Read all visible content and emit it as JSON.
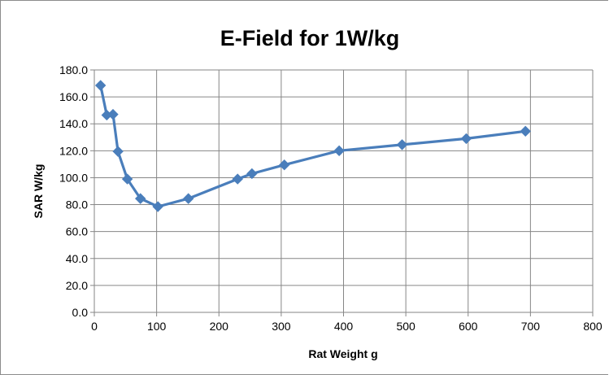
{
  "chart_data": {
    "type": "line",
    "title": "E-Field for 1W/kg",
    "xlabel": "Rat Weight g",
    "ylabel": "SAR W/kg",
    "xlim": [
      0,
      800
    ],
    "ylim": [
      0,
      180
    ],
    "x_ticks": [
      "0",
      "100",
      "200",
      "300",
      "400",
      "500",
      "600",
      "700",
      "800"
    ],
    "y_ticks": [
      "0.0",
      "20.0",
      "40.0",
      "60.0",
      "80.0",
      "100.0",
      "120.0",
      "140.0",
      "160.0",
      "180.0"
    ],
    "grid": true,
    "legend": "none",
    "colors": {
      "series": "#4a7ebb",
      "grid": "#868686",
      "axis": "#868686"
    },
    "series": [
      {
        "marker": "diamond",
        "points": [
          [
            10,
            168.5
          ],
          [
            20,
            146.5
          ],
          [
            30,
            147.0
          ],
          [
            38,
            119.5
          ],
          [
            53,
            99.0
          ],
          [
            74,
            84.5
          ],
          [
            102,
            78.5
          ],
          [
            151,
            84.5
          ],
          [
            230,
            99.0
          ],
          [
            253,
            103.0
          ],
          [
            305,
            109.5
          ],
          [
            393,
            120.0
          ],
          [
            494,
            124.5
          ],
          [
            597,
            129.0
          ],
          [
            692,
            134.5
          ]
        ]
      }
    ]
  }
}
